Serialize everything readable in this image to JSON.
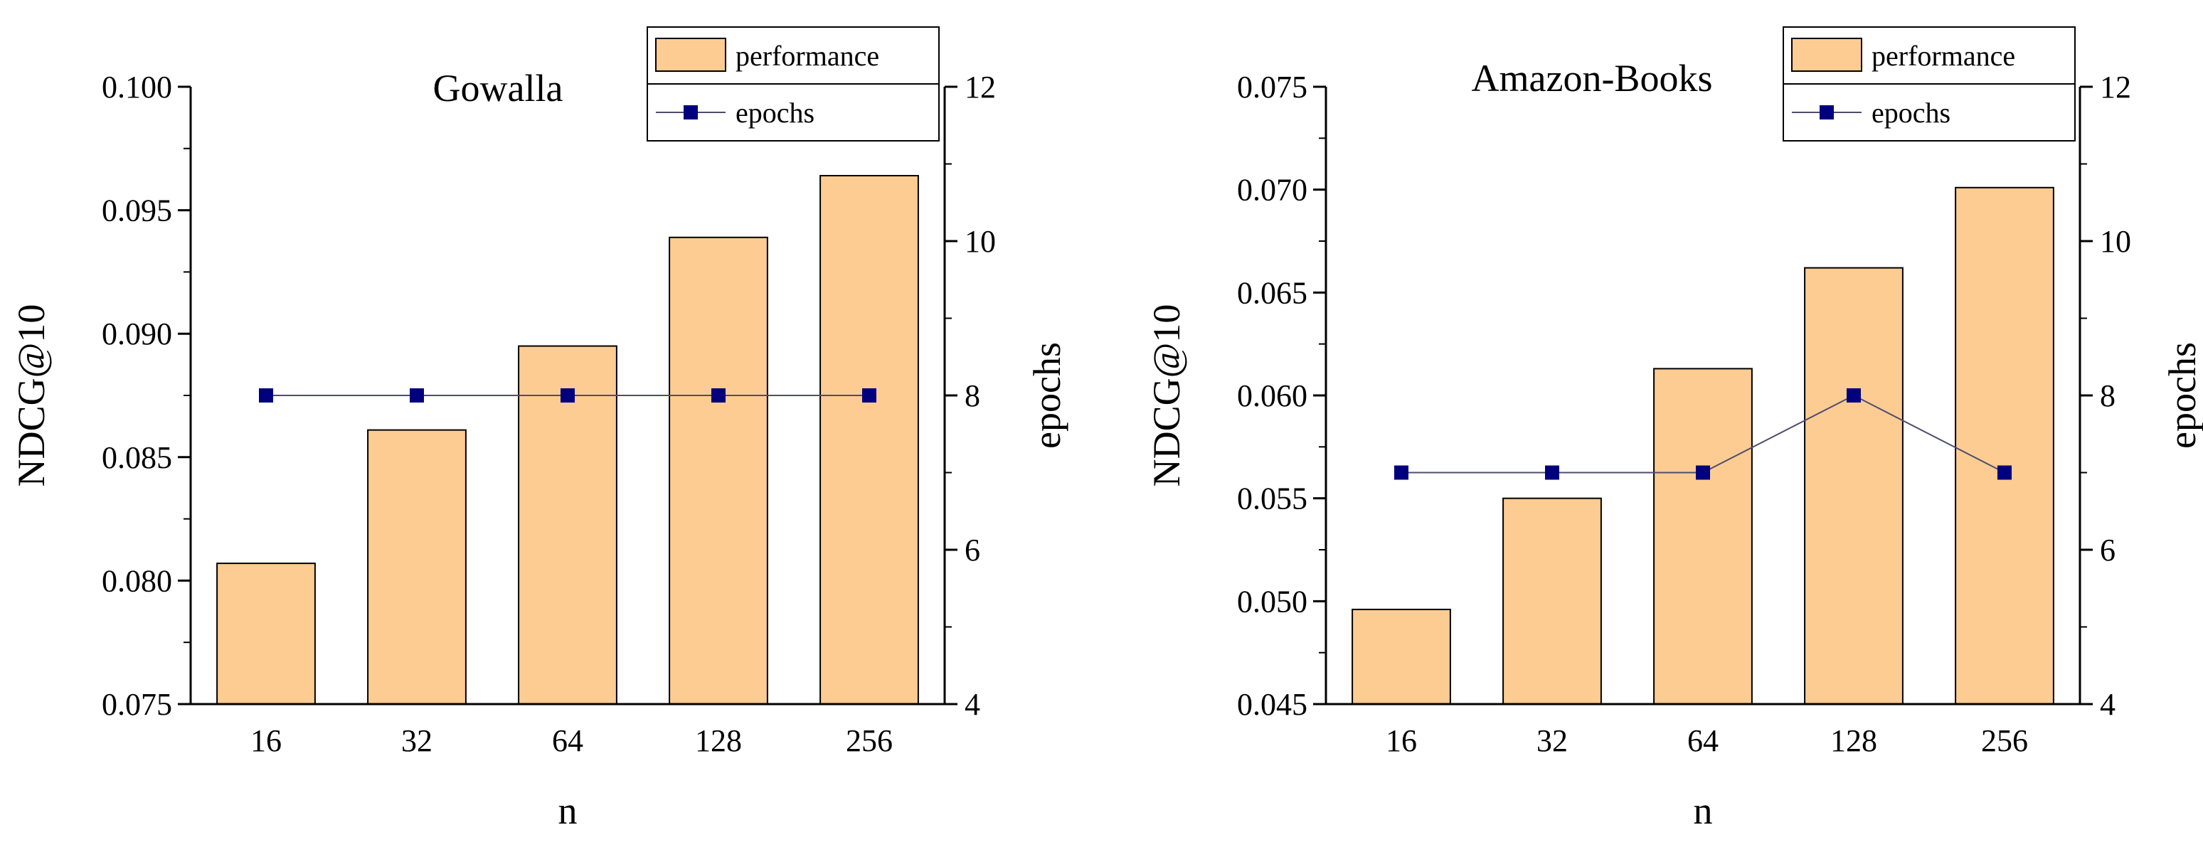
{
  "chart_data": [
    {
      "type": "bar+line",
      "title": "Gowalla",
      "xlabel": "n",
      "ylabel": "NDCG@10",
      "y2label": "epochs",
      "categories": [
        "16",
        "32",
        "64",
        "128",
        "256"
      ],
      "ylim": [
        0.075,
        0.1
      ],
      "yticks": [
        "0.075",
        "0.080",
        "0.085",
        "0.090",
        "0.095",
        "0.100"
      ],
      "y2lim": [
        4,
        12
      ],
      "y2ticks": [
        "4",
        "6",
        "8",
        "10",
        "12"
      ],
      "series": [
        {
          "name": "performance",
          "kind": "bar",
          "axis": "left",
          "values": [
            0.0807,
            0.0861,
            0.0895,
            0.0939,
            0.0964
          ]
        },
        {
          "name": "epochs",
          "kind": "line",
          "axis": "right",
          "values": [
            8,
            8,
            8,
            8,
            8
          ]
        }
      ],
      "legend": [
        "performance",
        "epochs"
      ],
      "grid": false
    },
    {
      "type": "bar+line",
      "title": "Amazon-Books",
      "xlabel": "n",
      "ylabel": "NDCG@10",
      "y2label": "epochs",
      "categories": [
        "16",
        "32",
        "64",
        "128",
        "256"
      ],
      "ylim": [
        0.045,
        0.075
      ],
      "yticks": [
        "0.045",
        "0.050",
        "0.055",
        "0.060",
        "0.065",
        "0.070",
        "0.075"
      ],
      "y2lim": [
        4,
        12
      ],
      "y2ticks": [
        "4",
        "6",
        "8",
        "10",
        "12"
      ],
      "series": [
        {
          "name": "performance",
          "kind": "bar",
          "axis": "left",
          "values": [
            0.0496,
            0.055,
            0.0613,
            0.0662,
            0.0701
          ]
        },
        {
          "name": "epochs",
          "kind": "line",
          "axis": "right",
          "values": [
            7,
            7,
            7,
            8,
            7
          ]
        }
      ],
      "legend": [
        "performance",
        "epochs"
      ],
      "grid": false
    }
  ],
  "colors": {
    "bar_fill": "#FDCC92",
    "bar_stroke": "#000000",
    "line": "#4D4D6E",
    "marker": "#00007F",
    "axis": "#000000"
  }
}
